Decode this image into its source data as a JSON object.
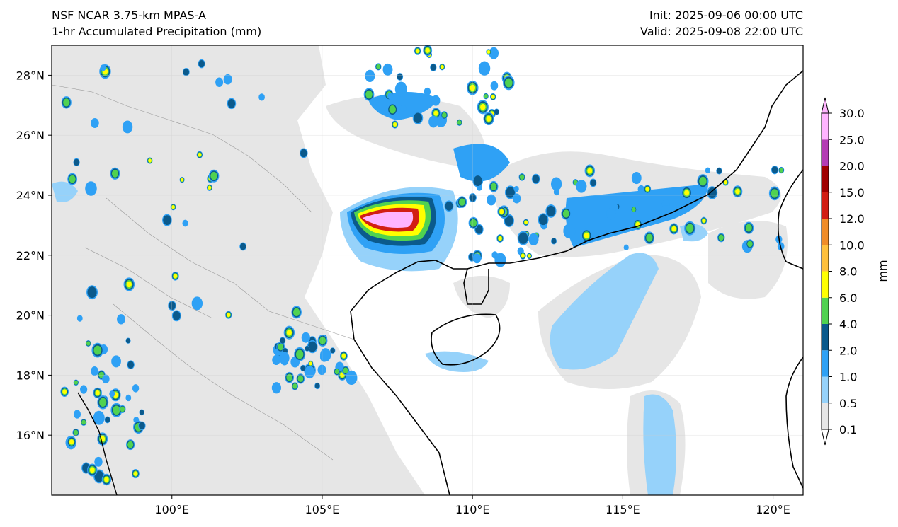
{
  "header": {
    "title_left_1": "NSF NCAR 3.75-km MPAS-A",
    "title_left_2": "1-hr Accumulated Precipitation (mm)",
    "title_right_1": "Init: 2025-09-06 00:00 UTC",
    "title_right_2": "Valid: 2025-09-08 22:00 UTC"
  },
  "map": {
    "lon_range": [
      96,
      121
    ],
    "lat_range": [
      14,
      29
    ],
    "lon_ticks": [
      {
        "value": 100,
        "label": "100°E"
      },
      {
        "value": 105,
        "label": "105°E"
      },
      {
        "value": 110,
        "label": "110°E"
      },
      {
        "value": 115,
        "label": "115°E"
      },
      {
        "value": 120,
        "label": "120°E"
      }
    ],
    "lat_ticks": [
      {
        "value": 16,
        "label": "16°N"
      },
      {
        "value": 18,
        "label": "18°N"
      },
      {
        "value": 20,
        "label": "20°N"
      },
      {
        "value": 22,
        "label": "22°N"
      },
      {
        "value": 24,
        "label": "24°N"
      },
      {
        "value": 26,
        "label": "26°N"
      },
      {
        "value": 28,
        "label": "28°N"
      }
    ],
    "gridlines": true
  },
  "colorbar": {
    "label": "mm",
    "levels": [
      "0.1",
      "0.5",
      "1.0",
      "2.0",
      "4.0",
      "6.0",
      "8.0",
      "10.0",
      "12.0",
      "15.0",
      "20.0",
      "25.0",
      "30.0"
    ],
    "colors": [
      "#e6e6e6",
      "#96d2fa",
      "#2fa1f5",
      "#0b5a8c",
      "#50d250",
      "#ffff00",
      "#ffc03c",
      "#f08c28",
      "#d21e14",
      "#a00000",
      "#b43cb4",
      "#ffb4ff"
    ],
    "extend": "both"
  }
}
